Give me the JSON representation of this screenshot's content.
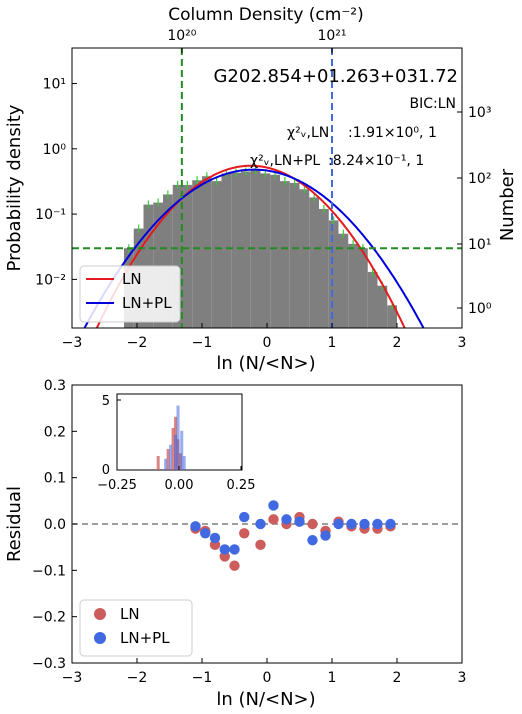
{
  "chart_data": [
    {
      "type": "bar",
      "title": "G202.854+01.263+031.72",
      "top_xlabel": "Column Density (cm⁻²)",
      "top_ticks": [
        "10²⁰",
        "10²¹"
      ],
      "top_tick_x": [
        -1.31,
        1.0
      ],
      "xlabel": "ln (N/<N>)",
      "ylabel": "Probability density",
      "y2label": "Number",
      "xlim": [
        -3,
        3
      ],
      "ylim_log": [
        0.0018,
        35
      ],
      "xticks": [
        "−3",
        "−2",
        "−1",
        "0",
        "1",
        "2",
        "3"
      ],
      "yticks": [
        "10⁻²",
        "10⁻¹",
        "10⁰",
        "10¹"
      ],
      "y2ticks": [
        "10⁰",
        "10¹",
        "10²",
        "10³"
      ],
      "annotations": {
        "bic": "BIC:LN",
        "chi_ln_label": "χ²ᵥ,LN",
        "chi_ln_value": ":1.91×10⁰, 1",
        "chi_lnpl_label": "χ²ᵥ,LN+PL",
        "chi_lnpl_value": ":8.24×10⁻¹, 1"
      },
      "vlines": [
        {
          "x": -1.31,
          "color": "#228B22"
        },
        {
          "x": 1.0,
          "color": "#4169E1"
        }
      ],
      "hline": {
        "y": 0.03,
        "color": "#228B22"
      },
      "histogram": {
        "color": "#7f7f7f",
        "bin_width": 0.15,
        "left_edges": [
          -2.2,
          -2.05,
          -1.9,
          -1.75,
          -1.6,
          -1.45,
          -1.3,
          -1.15,
          -1.0,
          -0.85,
          -0.7,
          -0.55,
          -0.4,
          -0.25,
          -0.1,
          0.05,
          0.2,
          0.35,
          0.5,
          0.65,
          0.8,
          0.95,
          1.1,
          1.25,
          1.4,
          1.55,
          1.7,
          1.85
        ],
        "values": [
          0.03,
          0.06,
          0.14,
          0.15,
          0.2,
          0.28,
          0.28,
          0.33,
          0.38,
          0.32,
          0.42,
          0.43,
          0.45,
          0.47,
          0.42,
          0.4,
          0.32,
          0.3,
          0.24,
          0.18,
          0.12,
          0.08,
          0.05,
          0.035,
          0.03,
          0.013,
          0.008,
          0.004
        ]
      },
      "series": [
        {
          "name": "LN",
          "color": "#e41a1c",
          "mu": -0.25,
          "sigma": 0.7,
          "peak": 0.55
        },
        {
          "name": "LN+PL",
          "color": "#0000dd",
          "mu": -0.2,
          "sigma": 0.78,
          "peak": 0.48
        }
      ]
    },
    {
      "type": "scatter",
      "xlabel": "ln (N/<N>)",
      "ylabel": "Residual",
      "xlim": [
        -3,
        3
      ],
      "ylim": [
        -0.3,
        0.3
      ],
      "xticks": [
        "−3",
        "−2",
        "−1",
        "0",
        "1",
        "2",
        "3"
      ],
      "yticks": [
        "−0.3",
        "−0.2",
        "−0.1",
        "0.0",
        "0.1",
        "0.2",
        "0.3"
      ],
      "series": [
        {
          "name": "LN",
          "color": "#cd5c5c",
          "x": [
            -1.1,
            -0.95,
            -0.8,
            -0.65,
            -0.5,
            -0.35,
            -0.1,
            0.1,
            0.3,
            0.5,
            0.7,
            0.9,
            1.1,
            1.3,
            1.5,
            1.7,
            1.9
          ],
          "y": [
            -0.01,
            -0.015,
            -0.045,
            -0.07,
            -0.09,
            -0.02,
            -0.045,
            0.01,
            0.0,
            0.015,
            0.0,
            -0.015,
            0.005,
            -0.005,
            -0.01,
            -0.01,
            -0.005
          ]
        },
        {
          "name": "LN+PL",
          "color": "#4169e1",
          "x": [
            -1.1,
            -0.95,
            -0.8,
            -0.65,
            -0.5,
            -0.35,
            -0.1,
            0.1,
            0.3,
            0.5,
            0.7,
            0.9,
            1.1,
            1.3,
            1.5,
            1.7,
            1.9
          ],
          "y": [
            -0.005,
            -0.02,
            -0.03,
            -0.055,
            -0.055,
            0.015,
            0.0,
            0.04,
            0.01,
            0.005,
            -0.035,
            -0.025,
            0.0,
            0.0,
            0.0,
            0.0,
            0.0
          ]
        }
      ],
      "inset": {
        "xticks": [
          "−0.25",
          "0.00",
          "0.25"
        ],
        "ymax_label": "5",
        "ymin_label": "0"
      }
    }
  ]
}
